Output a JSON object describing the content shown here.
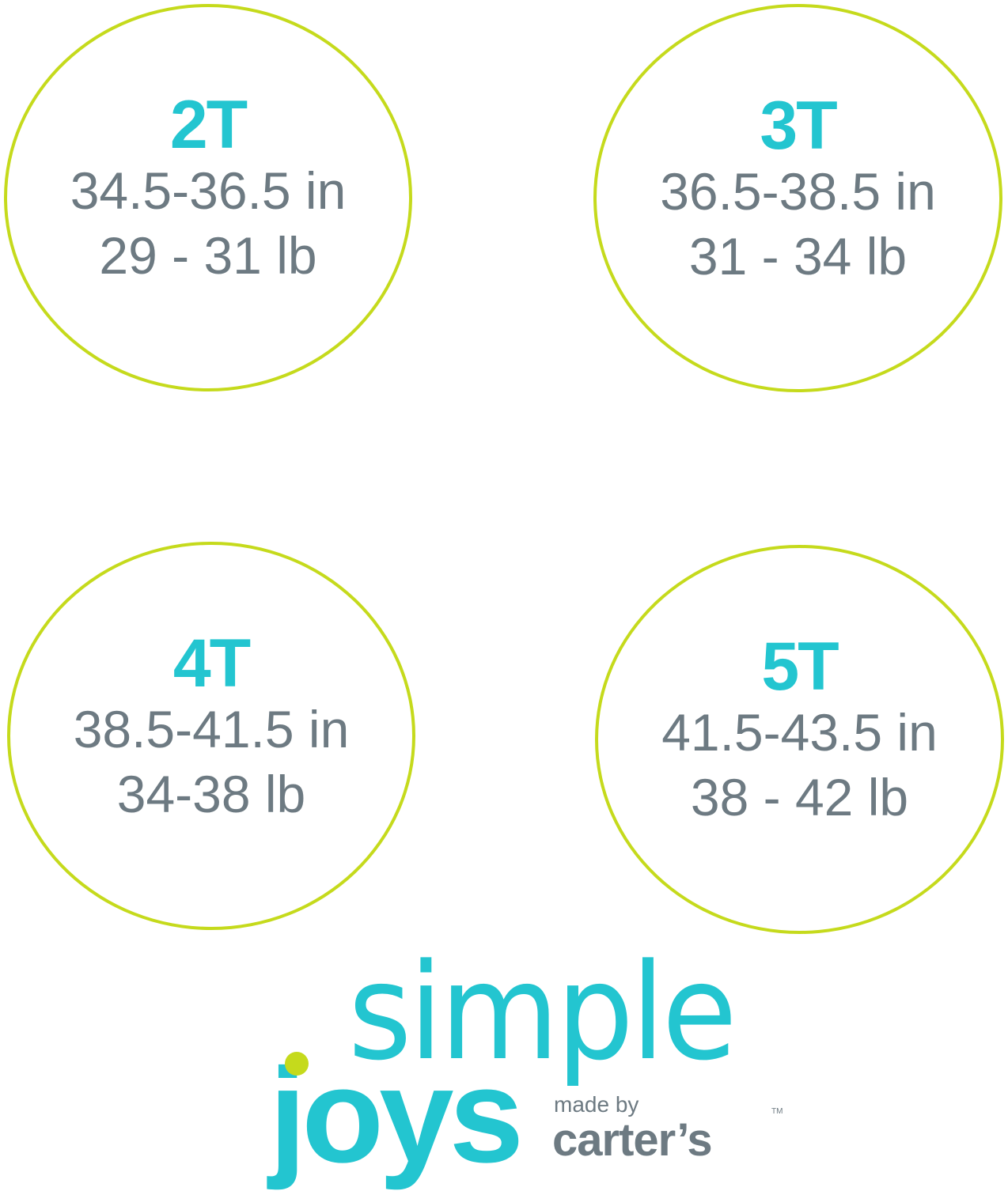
{
  "sizes": [
    {
      "label": "2T",
      "height": "34.5-36.5 in",
      "weight": "29 - 31 lb"
    },
    {
      "label": "3T",
      "height": "36.5-38.5 in",
      "weight": "31 - 34 lb"
    },
    {
      "label": "4T",
      "height": "38.5-41.5 in",
      "weight": "34-38 lb"
    },
    {
      "label": "5T",
      "height": "41.5-43.5 in",
      "weight": "38 - 42 lb"
    }
  ],
  "logo": {
    "line1": "simple",
    "line2": "joys",
    "made_by": "made by",
    "brand": "carter’s",
    "tm": "TM"
  },
  "colors": {
    "teal": "#23c5d0",
    "lime": "#c5da1c",
    "gray": "#6d7a82"
  }
}
